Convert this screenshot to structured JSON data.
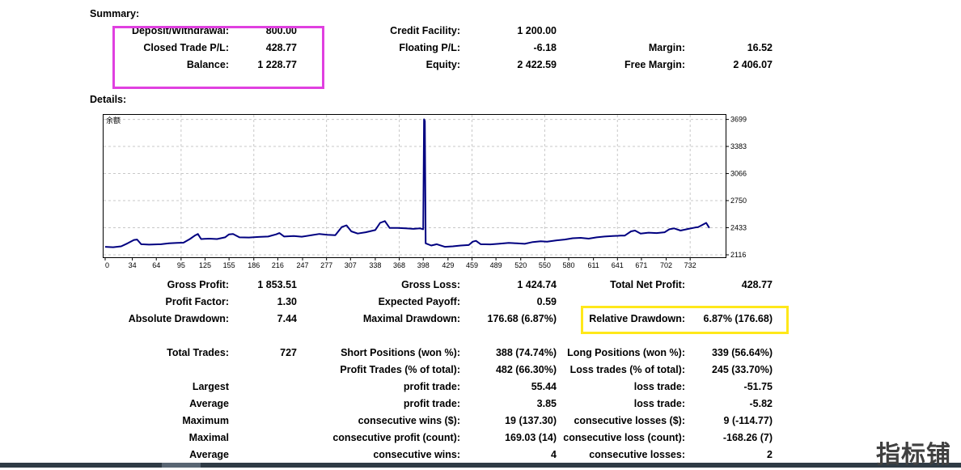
{
  "headings": {
    "summary": "Summary:",
    "details": "Details:"
  },
  "summary": [
    {
      "label": "Deposit/Withdrawal:",
      "value": "800.00",
      "col": 1,
      "row": 0
    },
    {
      "label": "Closed Trade P/L:",
      "value": "428.77",
      "col": 1,
      "row": 1
    },
    {
      "label": "Balance:",
      "value": "1 228.77",
      "col": 1,
      "row": 2
    },
    {
      "label": "Credit Facility:",
      "value": "1 200.00",
      "col": 2,
      "row": 0
    },
    {
      "label": "Floating P/L:",
      "value": "-6.18",
      "col": 2,
      "row": 1
    },
    {
      "label": "Equity:",
      "value": "2 422.59",
      "col": 2,
      "row": 2
    },
    {
      "label": "Margin:",
      "value": "16.52",
      "col": 3,
      "row": 1
    },
    {
      "label": "Free Margin:",
      "value": "2 406.07",
      "col": 3,
      "row": 2
    }
  ],
  "chart_data": {
    "type": "line",
    "title": "余额",
    "x_ticks": [
      0,
      34,
      64,
      95,
      125,
      155,
      186,
      216,
      247,
      277,
      307,
      338,
      368,
      398,
      429,
      459,
      489,
      520,
      550,
      580,
      611,
      641,
      671,
      702,
      732
    ],
    "y_ticks": [
      2116,
      2433,
      2750,
      3066,
      3383,
      3699
    ],
    "xlim": [
      0,
      748
    ],
    "ylim": [
      2116,
      3790
    ],
    "series": [
      {
        "values": [
          [
            0,
            2210
          ],
          [
            10,
            2205
          ],
          [
            20,
            2215
          ],
          [
            28,
            2250
          ],
          [
            36,
            2290
          ],
          [
            40,
            2295
          ],
          [
            45,
            2240
          ],
          [
            55,
            2235
          ],
          [
            70,
            2240
          ],
          [
            80,
            2250
          ],
          [
            90,
            2255
          ],
          [
            98,
            2258
          ],
          [
            106,
            2300
          ],
          [
            112,
            2340
          ],
          [
            116,
            2360
          ],
          [
            120,
            2300
          ],
          [
            130,
            2305
          ],
          [
            140,
            2300
          ],
          [
            150,
            2320
          ],
          [
            155,
            2355
          ],
          [
            160,
            2360
          ],
          [
            168,
            2320
          ],
          [
            180,
            2318
          ],
          [
            192,
            2325
          ],
          [
            204,
            2330
          ],
          [
            214,
            2355
          ],
          [
            218,
            2370
          ],
          [
            224,
            2330
          ],
          [
            236,
            2335
          ],
          [
            246,
            2328
          ],
          [
            258,
            2345
          ],
          [
            268,
            2360
          ],
          [
            278,
            2350
          ],
          [
            288,
            2345
          ],
          [
            296,
            2440
          ],
          [
            302,
            2460
          ],
          [
            308,
            2390
          ],
          [
            316,
            2365
          ],
          [
            326,
            2380
          ],
          [
            338,
            2405
          ],
          [
            344,
            2490
          ],
          [
            350,
            2510
          ],
          [
            356,
            2430
          ],
          [
            366,
            2430
          ],
          [
            376,
            2425
          ],
          [
            386,
            2420
          ],
          [
            394,
            2425
          ],
          [
            398,
            2415
          ],
          [
            399,
            3700
          ],
          [
            400,
            3680
          ],
          [
            401,
            2250
          ],
          [
            408,
            2225
          ],
          [
            415,
            2240
          ],
          [
            425,
            2210
          ],
          [
            435,
            2215
          ],
          [
            445,
            2225
          ],
          [
            455,
            2230
          ],
          [
            460,
            2270
          ],
          [
            464,
            2280
          ],
          [
            470,
            2240
          ],
          [
            482,
            2238
          ],
          [
            492,
            2245
          ],
          [
            505,
            2255
          ],
          [
            515,
            2250
          ],
          [
            525,
            2245
          ],
          [
            535,
            2265
          ],
          [
            545,
            2275
          ],
          [
            553,
            2270
          ],
          [
            565,
            2285
          ],
          [
            575,
            2295
          ],
          [
            585,
            2310
          ],
          [
            595,
            2315
          ],
          [
            605,
            2305
          ],
          [
            615,
            2320
          ],
          [
            625,
            2330
          ],
          [
            635,
            2335
          ],
          [
            645,
            2340
          ],
          [
            650,
            2340
          ],
          [
            658,
            2390
          ],
          [
            663,
            2400
          ],
          [
            670,
            2365
          ],
          [
            680,
            2375
          ],
          [
            690,
            2370
          ],
          [
            700,
            2380
          ],
          [
            706,
            2415
          ],
          [
            712,
            2425
          ],
          [
            720,
            2400
          ],
          [
            730,
            2420
          ],
          [
            738,
            2435
          ],
          [
            742,
            2440
          ],
          [
            748,
            2470
          ],
          [
            752,
            2490
          ],
          [
            756,
            2430
          ]
        ]
      }
    ],
    "grid": true,
    "colors": {
      "line": "#000080",
      "grid": "#c8c8c8",
      "axis": "#000000"
    }
  },
  "stats_left": [
    {
      "label": "Gross Profit:",
      "value": "1 853.51",
      "row": 0
    },
    {
      "label": "Profit Factor:",
      "value": "1.30",
      "row": 1
    },
    {
      "label": "Absolute Drawdown:",
      "value": "7.44",
      "row": 2
    },
    {
      "label": "Total Trades:",
      "value": "727",
      "row": 4
    },
    {
      "label": "Largest",
      "value": "",
      "row": 6
    },
    {
      "label": "Average",
      "value": "",
      "row": 7
    },
    {
      "label": "Maximum",
      "value": "",
      "row": 8
    },
    {
      "label": "Maximal",
      "value": "",
      "row": 9
    },
    {
      "label": "Average",
      "value": "",
      "row": 10
    }
  ],
  "stats_mid": [
    {
      "label": "Gross Loss:",
      "value": "1 424.74",
      "row": 0
    },
    {
      "label": "Expected Payoff:",
      "value": "0.59",
      "row": 1
    },
    {
      "label": "Maximal Drawdown:",
      "value": "176.68 (6.87%)",
      "row": 2
    },
    {
      "label": "Short Positions (won %):",
      "value": "388 (74.74%)",
      "row": 4
    },
    {
      "label": "Profit Trades (% of total):",
      "value": "482 (66.30%)",
      "row": 5
    },
    {
      "label": "profit trade:",
      "value": "55.44",
      "row": 6
    },
    {
      "label": "profit trade:",
      "value": "3.85",
      "row": 7
    },
    {
      "label": "consecutive wins ($):",
      "value": "19 (137.30)",
      "row": 8
    },
    {
      "label": "consecutive profit (count):",
      "value": "169.03 (14)",
      "row": 9
    },
    {
      "label": "consecutive wins:",
      "value": "4",
      "row": 10
    }
  ],
  "stats_right": [
    {
      "label": "Total Net Profit:",
      "value": "428.77",
      "row": 0
    },
    {
      "label": "Relative Drawdown:",
      "value": "6.87% (176.68)",
      "row": 2
    },
    {
      "label": "Long Positions (won %):",
      "value": "339 (56.64%)",
      "row": 4
    },
    {
      "label": "Loss trades (% of total):",
      "value": "245 (33.70%)",
      "row": 5
    },
    {
      "label": "loss trade:",
      "value": "-51.75",
      "row": 6
    },
    {
      "label": "loss trade:",
      "value": "-5.82",
      "row": 7
    },
    {
      "label": "consecutive losses ($):",
      "value": "9 (-114.77)",
      "row": 8
    },
    {
      "label": "consecutive loss (count):",
      "value": "-168.26 (7)",
      "row": 9
    },
    {
      "label": "consecutive losses:",
      "value": "2",
      "row": 10
    }
  ],
  "watermark": "指标铺",
  "highlights": {
    "summary_box_color": "#e040e0",
    "drawdown_box_color": "#ffe81a"
  }
}
